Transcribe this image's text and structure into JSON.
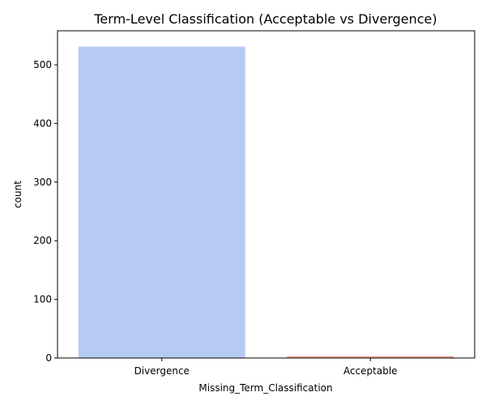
{
  "chart_data": {
    "type": "bar",
    "title": "Term-Level Classification (Acceptable vs Divergence)",
    "xlabel": "Missing_Term_Classification",
    "ylabel": "count",
    "categories": [
      "Divergence",
      "Acceptable"
    ],
    "values": [
      531,
      3
    ],
    "colors": [
      "#b6cbf4",
      "#f4a090"
    ],
    "ylim": [
      0,
      558
    ],
    "yticks": [
      0,
      100,
      200,
      300,
      400,
      500
    ],
    "grid": false,
    "legend": "none"
  }
}
